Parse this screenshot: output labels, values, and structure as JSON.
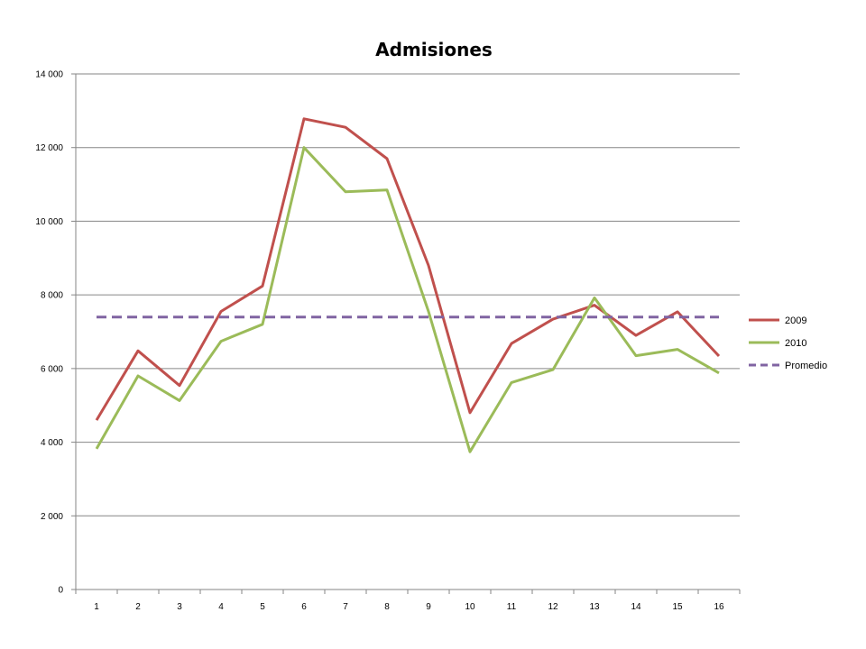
{
  "chart_data": {
    "type": "line",
    "title": "Admisiones",
    "xlabel": "",
    "ylabel": "",
    "categories": [
      "1",
      "2",
      "3",
      "4",
      "5",
      "6",
      "7",
      "8",
      "9",
      "10",
      "11",
      "12",
      "13",
      "14",
      "15",
      "16"
    ],
    "ylim": [
      0,
      14000
    ],
    "yticks": [
      0,
      2000,
      4000,
      6000,
      8000,
      10000,
      12000,
      14000
    ],
    "ytick_labels": [
      "0",
      "2 000",
      "4 000",
      "6 000",
      "8 000",
      "10 000",
      "12 000",
      "14 000"
    ],
    "grid": true,
    "legend_position": "right",
    "series": [
      {
        "name": "2009",
        "color": "#C0504D",
        "dash": "solid",
        "values": [
          4600,
          6480,
          5540,
          7550,
          8240,
          12780,
          12550,
          11700,
          8800,
          4800,
          6680,
          7340,
          7720,
          6900,
          7540,
          6340
        ]
      },
      {
        "name": "2010",
        "color": "#9BBB59",
        "dash": "solid",
        "values": [
          3820,
          5800,
          5130,
          6740,
          7200,
          12000,
          10800,
          10850,
          7550,
          3740,
          5620,
          5970,
          7920,
          6350,
          6520,
          5880
        ]
      },
      {
        "name": "Promedio",
        "color": "#8064A2",
        "dash": "dashed",
        "values": [
          7400,
          7400,
          7400,
          7400,
          7400,
          7400,
          7400,
          7400,
          7400,
          7400,
          7400,
          7400,
          7400,
          7400,
          7400,
          7400
        ]
      }
    ]
  }
}
